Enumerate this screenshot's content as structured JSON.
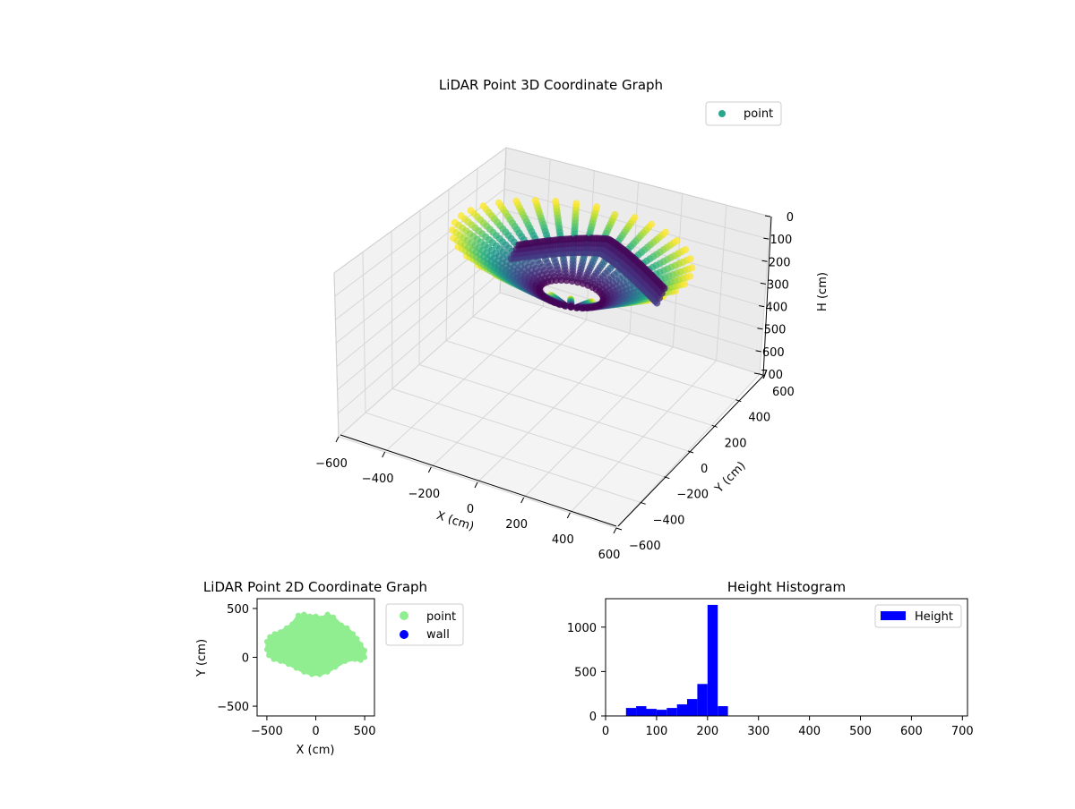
{
  "chart_data": [
    {
      "type": "scatter3d",
      "title": "LiDAR Point 3D Coordinate Graph",
      "xlabel": "X (cm)",
      "ylabel": "Y (cm)",
      "zlabel": "H (cm)",
      "xlim": [
        -600,
        600
      ],
      "ylim": [
        -600,
        600
      ],
      "zlim": [
        700,
        0
      ],
      "z_inverted": true,
      "xticks": [
        "−600",
        "−400",
        "−200",
        "0",
        "200",
        "400",
        "600"
      ],
      "yticks": [
        "−600",
        "−400",
        "−200",
        "0",
        "200",
        "400",
        "600"
      ],
      "zticks": [
        "0",
        "100",
        "200",
        "300",
        "400",
        "500",
        "600",
        "700"
      ],
      "grid": true,
      "legend": {
        "position": "upper right",
        "entries": [
          {
            "label": "point",
            "color": "#2ca58d"
          }
        ]
      },
      "colormap": "viridis",
      "description_scan": {
        "rings": 24,
        "x_extent": [
          -500,
          500
        ],
        "y_extent": [
          -170,
          440
        ],
        "height_range": [
          40,
          250
        ]
      }
    },
    {
      "type": "scatter",
      "title": "LiDAR Point 2D Coordinate Graph",
      "xlabel": "X (cm)",
      "ylabel": "Y (cm)",
      "xlim": [
        -600,
        600
      ],
      "ylim": [
        -600,
        600
      ],
      "xticks": [
        "−500",
        "0",
        "500"
      ],
      "yticks": [
        "−500",
        "0",
        "500"
      ],
      "series": [
        {
          "name": "point",
          "color": "#90ee90",
          "outline": [
            [
              -500,
              160
            ],
            [
              -470,
              210
            ],
            [
              -420,
              240
            ],
            [
              -360,
              260
            ],
            [
              -300,
              300
            ],
            [
              -240,
              340
            ],
            [
              -180,
              430
            ],
            [
              -120,
              440
            ],
            [
              -60,
              420
            ],
            [
              0,
              420
            ],
            [
              60,
              400
            ],
            [
              120,
              440
            ],
            [
              180,
              410
            ],
            [
              260,
              330
            ],
            [
              320,
              300
            ],
            [
              380,
              240
            ],
            [
              420,
              190
            ],
            [
              460,
              130
            ],
            [
              500,
              70
            ],
            [
              500,
              0
            ],
            [
              460,
              -30
            ],
            [
              400,
              -20
            ],
            [
              300,
              -40
            ],
            [
              200,
              -100
            ],
            [
              120,
              -150
            ],
            [
              40,
              -175
            ],
            [
              -40,
              -175
            ],
            [
              -120,
              -150
            ],
            [
              -200,
              -110
            ],
            [
              -280,
              -70
            ],
            [
              -360,
              -40
            ],
            [
              -430,
              -20
            ],
            [
              -480,
              20
            ],
            [
              -500,
              80
            ]
          ]
        },
        {
          "name": "wall",
          "color": "#0000ff",
          "points": []
        }
      ],
      "legend": {
        "position": "outside right",
        "entries": [
          {
            "label": "point",
            "color": "#90ee90"
          },
          {
            "label": "wall",
            "color": "#0000ff"
          }
        ]
      }
    },
    {
      "type": "bar",
      "title": "Height Histogram",
      "xlim": [
        0,
        710
      ],
      "ylim": [
        0,
        1320
      ],
      "xticks": [
        "0",
        "100",
        "200",
        "300",
        "400",
        "500",
        "600",
        "700"
      ],
      "yticks": [
        "0",
        "500",
        "1000"
      ],
      "bin_width": 20,
      "bins": [
        {
          "x0": 40,
          "x1": 60,
          "value": 90
        },
        {
          "x0": 60,
          "x1": 80,
          "value": 110
        },
        {
          "x0": 80,
          "x1": 100,
          "value": 80
        },
        {
          "x0": 100,
          "x1": 120,
          "value": 70
        },
        {
          "x0": 120,
          "x1": 140,
          "value": 90
        },
        {
          "x0": 140,
          "x1": 160,
          "value": 130
        },
        {
          "x0": 160,
          "x1": 180,
          "value": 190
        },
        {
          "x0": 180,
          "x1": 200,
          "value": 360
        },
        {
          "x0": 200,
          "x1": 220,
          "value": 1250
        },
        {
          "x0": 220,
          "x1": 240,
          "value": 110
        }
      ],
      "series": [
        {
          "name": "Height",
          "color": "#0000ff"
        }
      ],
      "legend": {
        "position": "upper right",
        "entries": [
          {
            "label": "Height",
            "color": "#0000ff"
          }
        ]
      }
    }
  ]
}
